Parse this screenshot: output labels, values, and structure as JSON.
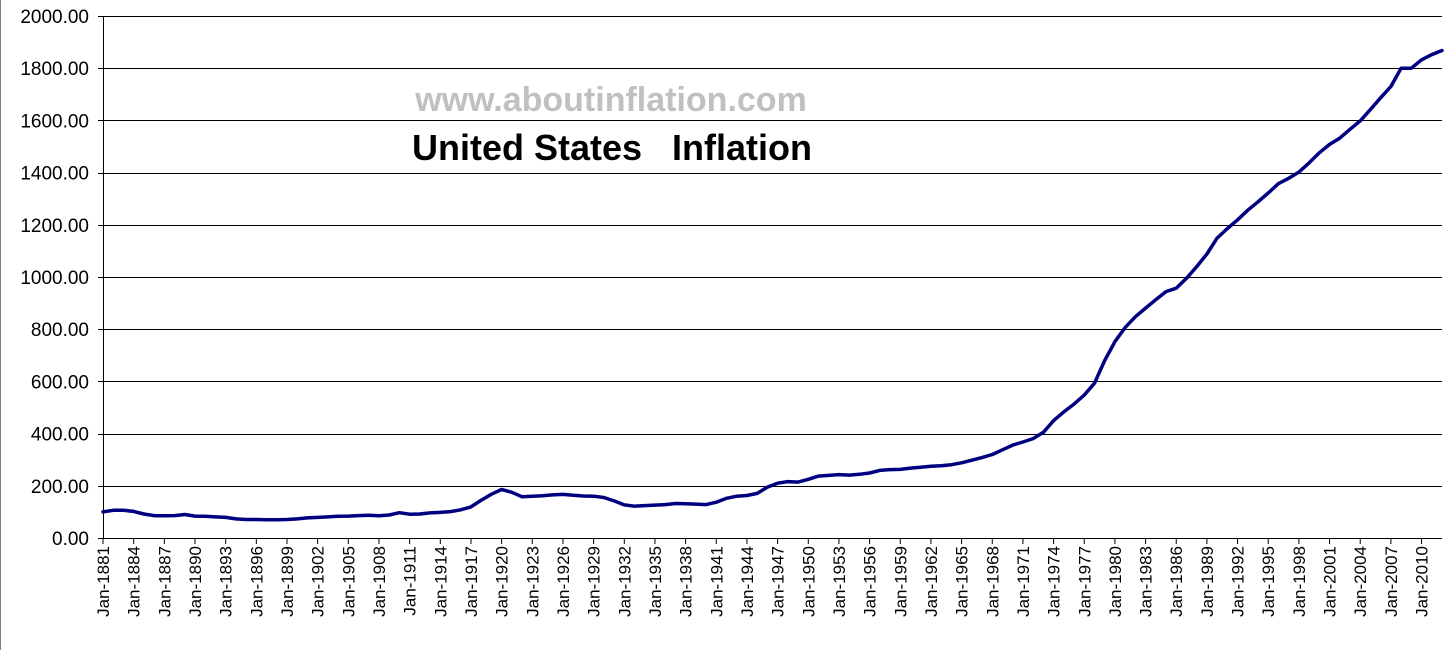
{
  "chart_data": {
    "type": "line",
    "title": "United States   Inflation",
    "watermark": "www.aboutinflation.com",
    "xlabel": "",
    "ylabel": "",
    "ylim": [
      0,
      2000
    ],
    "xlim": [
      1881,
      2012
    ],
    "y_ticks": [
      "0.00",
      "200.00",
      "400.00",
      "600.00",
      "800.00",
      "1000.00",
      "1200.00",
      "1400.00",
      "1600.00",
      "1800.00",
      "2000.00"
    ],
    "x_ticks": [
      "Jan-1881",
      "Jan-1884",
      "Jan-1887",
      "Jan-1890",
      "Jan-1893",
      "Jan-1896",
      "Jan-1899",
      "Jan-1902",
      "Jan-1905",
      "Jan-1908",
      "Jan-1911",
      "Jan-1914",
      "Jan-1917",
      "Jan-1920",
      "Jan-1923",
      "Jan-1926",
      "Jan-1929",
      "Jan-1932",
      "Jan-1935",
      "Jan-1938",
      "Jan-1941",
      "Jan-1944",
      "Jan-1947",
      "Jan-1950",
      "Jan-1953",
      "Jan-1956",
      "Jan-1959",
      "Jan-1962",
      "Jan-1965",
      "Jan-1968",
      "Jan-1971",
      "Jan-1974",
      "Jan-1977",
      "Jan-1980",
      "Jan-1983",
      "Jan-1986",
      "Jan-1989",
      "Jan-1992",
      "Jan-1995",
      "Jan-1998",
      "Jan-2001",
      "Jan-2004",
      "Jan-2007",
      "Jan-2010"
    ],
    "grid": true,
    "line_color": "#000080",
    "series": [
      {
        "name": "United States Inflation",
        "x": [
          1881,
          1882,
          1883,
          1884,
          1885,
          1886,
          1887,
          1888,
          1889,
          1890,
          1891,
          1892,
          1893,
          1894,
          1895,
          1896,
          1897,
          1898,
          1899,
          1900,
          1901,
          1902,
          1903,
          1904,
          1905,
          1906,
          1907,
          1908,
          1909,
          1910,
          1911,
          1912,
          1913,
          1914,
          1915,
          1916,
          1917,
          1918,
          1919,
          1920,
          1921,
          1922,
          1923,
          1924,
          1925,
          1926,
          1927,
          1928,
          1929,
          1930,
          1931,
          1932,
          1933,
          1934,
          1935,
          1936,
          1937,
          1938,
          1939,
          1940,
          1941,
          1942,
          1943,
          1944,
          1945,
          1946,
          1947,
          1948,
          1949,
          1950,
          1951,
          1952,
          1953,
          1954,
          1955,
          1956,
          1957,
          1958,
          1959,
          1960,
          1961,
          1962,
          1963,
          1964,
          1965,
          1966,
          1967,
          1968,
          1969,
          1970,
          1971,
          1972,
          1973,
          1974,
          1975,
          1976,
          1977,
          1978,
          1979,
          1980,
          1981,
          1982,
          1983,
          1984,
          1985,
          1986,
          1987,
          1988,
          1989,
          1990,
          1991,
          1992,
          1993,
          1994,
          1995,
          1996,
          1997,
          1998,
          1999,
          2000,
          2001,
          2002,
          2003,
          2004,
          2005,
          2006,
          2007,
          2008,
          2009,
          2010,
          2011,
          2012
        ],
        "values": [
          100,
          106,
          106,
          102,
          92,
          86,
          85,
          86,
          90,
          84,
          83,
          81,
          79,
          73,
          71,
          71,
          70,
          70,
          71,
          73,
          77,
          79,
          81,
          83,
          84,
          86,
          87,
          85,
          88,
          97,
          91,
          92,
          96,
          98,
          101,
          108,
          119,
          145,
          168,
          186,
          175,
          158,
          160,
          162,
          165,
          167,
          164,
          161,
          160,
          155,
          142,
          127,
          122,
          124,
          126,
          128,
          132,
          131,
          130,
          128,
          137,
          152,
          160,
          163,
          171,
          195,
          210,
          216,
          214,
          225,
          237,
          240,
          243,
          241,
          244,
          249,
          259,
          262,
          263,
          268,
          271,
          275,
          277,
          281,
          288,
          298,
          308,
          320,
          338,
          356,
          368,
          381,
          405,
          450,
          483,
          513,
          548,
          593,
          680,
          752,
          806,
          848,
          881,
          913,
          944,
          957,
          995,
          1040,
          1088,
          1149,
          1186,
          1219,
          1256,
          1288,
          1322,
          1358,
          1378,
          1402,
          1437,
          1476,
          1508,
          1532,
          1566,
          1598,
          1642,
          1687,
          1730,
          1800,
          1800,
          1832,
          1852,
          1868
        ]
      }
    ]
  }
}
